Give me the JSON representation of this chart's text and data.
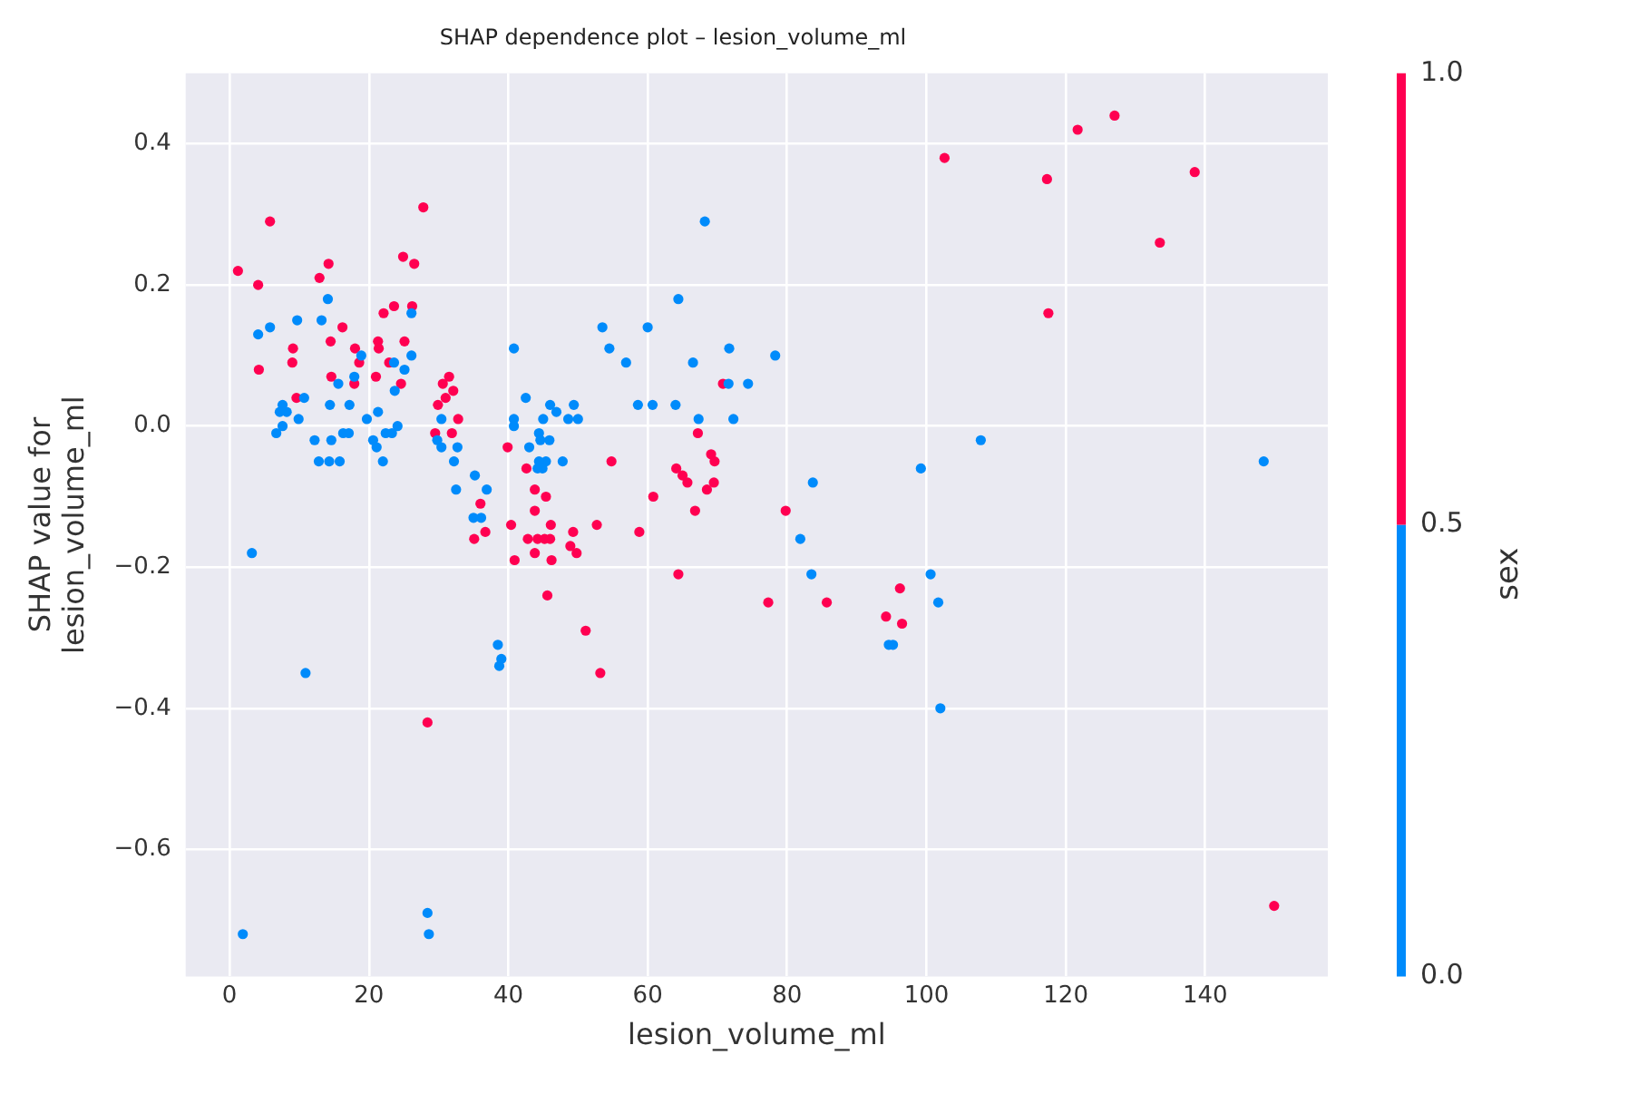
{
  "chart_data": {
    "type": "scatter",
    "title": "SHAP dependence plot – lesion_volume_ml",
    "xlabel": "lesion_volume_ml",
    "ylabel": "SHAP value for\nlesion_volume_ml",
    "clabel": "sex",
    "xlim": [
      -6.3,
      157.6
    ],
    "ylim": [
      -0.78,
      0.5
    ],
    "xticks": [
      0,
      20,
      40,
      60,
      80,
      100,
      120,
      140
    ],
    "yticks": [
      {
        "value": -0.6,
        "label": "−0.6"
      },
      {
        "value": -0.4,
        "label": "−0.4"
      },
      {
        "value": -0.2,
        "label": "−0.2"
      },
      {
        "value": 0,
        "label": "0.0"
      },
      {
        "value": 0.2,
        "label": "0.2"
      },
      {
        "value": 0.4,
        "label": "0.4"
      }
    ],
    "clim": [
      0,
      1
    ],
    "cticks": [
      {
        "value": 0,
        "label": "0.0"
      },
      {
        "value": 0.5,
        "label": "0.5"
      },
      {
        "value": 1,
        "label": "1.0"
      }
    ],
    "grid": true,
    "marker": "circle",
    "series": [
      {
        "color": "#008bfb",
        "x": [
          14.1,
          13.2,
          9.7,
          5.8,
          4.1,
          26.1,
          26.1,
          25.1,
          18.9,
          23.6,
          17.9,
          15.6,
          23.7,
          10.7,
          17.2,
          14.4,
          7.6,
          7.2,
          8.2,
          7.6,
          6.7,
          9.9,
          19.7,
          21.3,
          12.2,
          14.6,
          16.3,
          17.1,
          20.6,
          21.1,
          22.4,
          24.1,
          23.3,
          12.8,
          14.3,
          15.8,
          22.0,
          30.4,
          29.8,
          30.4,
          32.7,
          32.2,
          32.5,
          35.2,
          36.9,
          35.0,
          36.1,
          40.8,
          42.5,
          40.8,
          40.8,
          43.0,
          44.2,
          3.2,
          53.5,
          54.5,
          56.9,
          60.0,
          64.4,
          66.5,
          71.7,
          71.6,
          74.4,
          78.3,
          58.6,
          60.7,
          64.0,
          67.3,
          72.3,
          46.0,
          49.4,
          46.9,
          48.6,
          50.0,
          45.0,
          44.4,
          44.6,
          45.9,
          45.4,
          44.4,
          44.9,
          47.8,
          38.5,
          39.0,
          38.7,
          68.2,
          107.8,
          99.2,
          148.4,
          83.7,
          81.9,
          83.5,
          100.6,
          101.7,
          94.6,
          95.2,
          102.0,
          10.9,
          1.9,
          28.4,
          28.6
        ],
        "values": [
          0.18,
          0.15,
          0.15,
          0.14,
          0.13,
          0.16,
          0.1,
          0.08,
          0.1,
          0.09,
          0.07,
          0.06,
          0.05,
          0.04,
          0.03,
          0.03,
          0.03,
          0.02,
          0.02,
          0.0,
          -0.01,
          0.01,
          0.01,
          0.02,
          -0.02,
          -0.02,
          -0.01,
          -0.01,
          -0.02,
          -0.03,
          -0.01,
          0.0,
          -0.01,
          -0.05,
          -0.05,
          -0.05,
          -0.05,
          0.01,
          -0.02,
          -0.03,
          -0.03,
          -0.05,
          -0.09,
          -0.07,
          -0.09,
          -0.13,
          -0.13,
          0.11,
          0.04,
          0.01,
          0.0,
          -0.03,
          -0.06,
          -0.18,
          0.14,
          0.11,
          0.09,
          0.14,
          0.18,
          0.09,
          0.11,
          0.06,
          0.06,
          0.1,
          0.03,
          0.03,
          0.03,
          0.01,
          0.01,
          0.03,
          0.03,
          0.02,
          0.01,
          0.01,
          0.01,
          -0.01,
          -0.02,
          -0.02,
          -0.05,
          -0.05,
          -0.06,
          -0.05,
          -0.31,
          -0.33,
          -0.34,
          0.29,
          -0.02,
          -0.06,
          -0.05,
          -0.08,
          -0.16,
          -0.21,
          -0.21,
          -0.25,
          -0.31,
          -0.31,
          -0.4,
          -0.35,
          -0.72,
          -0.69,
          -0.72
        ]
      },
      {
        "color": "#ff0051",
        "x": [
          1.2,
          5.8,
          4.1,
          14.2,
          12.9,
          27.8,
          24.9,
          26.5,
          23.6,
          26.2,
          22.1,
          16.2,
          9.1,
          9.0,
          4.2,
          14.5,
          18.0,
          18.6,
          21.3,
          21.4,
          25.1,
          22.9,
          14.6,
          21.0,
          24.6,
          17.9,
          9.6,
          30.6,
          31.5,
          29.9,
          31.0,
          32.1,
          32.8,
          29.5,
          31.9,
          39.9,
          42.6,
          43.8,
          43.8,
          36.0,
          36.7,
          35.1,
          40.4,
          42.8,
          40.9,
          43.8,
          70.8,
          54.8,
          45.4,
          44.2,
          45.2,
          46.0,
          46.1,
          46.2,
          49.3,
          48.9,
          49.8,
          52.7,
          45.6,
          51.1,
          53.2,
          60.8,
          58.8,
          64.4,
          67.2,
          69.1,
          69.6,
          64.1,
          65.0,
          65.7,
          69.5,
          68.5,
          66.8,
          77.3,
          28.4,
          121.7,
          127.0,
          102.6,
          117.3,
          138.5,
          133.5,
          117.5,
          79.8,
          85.7,
          96.2,
          94.2,
          96.5,
          149.9
        ],
        "values": [
          0.22,
          0.29,
          0.2,
          0.23,
          0.21,
          0.31,
          0.24,
          0.23,
          0.17,
          0.17,
          0.16,
          0.14,
          0.11,
          0.09,
          0.08,
          0.12,
          0.11,
          0.09,
          0.12,
          0.11,
          0.12,
          0.09,
          0.07,
          0.07,
          0.06,
          0.06,
          0.04,
          0.06,
          0.07,
          0.03,
          0.04,
          0.05,
          0.01,
          -0.01,
          -0.01,
          -0.03,
          -0.06,
          -0.09,
          -0.12,
          -0.11,
          -0.15,
          -0.16,
          -0.14,
          -0.16,
          -0.19,
          -0.18,
          0.06,
          -0.05,
          -0.1,
          -0.16,
          -0.16,
          -0.16,
          -0.14,
          -0.19,
          -0.15,
          -0.17,
          -0.18,
          -0.14,
          -0.24,
          -0.29,
          -0.35,
          -0.1,
          -0.15,
          -0.21,
          -0.01,
          -0.04,
          -0.05,
          -0.06,
          -0.07,
          -0.08,
          -0.08,
          -0.09,
          -0.12,
          -0.25,
          -0.42,
          0.42,
          0.44,
          0.38,
          0.35,
          0.36,
          0.26,
          0.16,
          -0.12,
          -0.25,
          -0.23,
          -0.27,
          -0.28,
          -0.68
        ]
      }
    ]
  }
}
